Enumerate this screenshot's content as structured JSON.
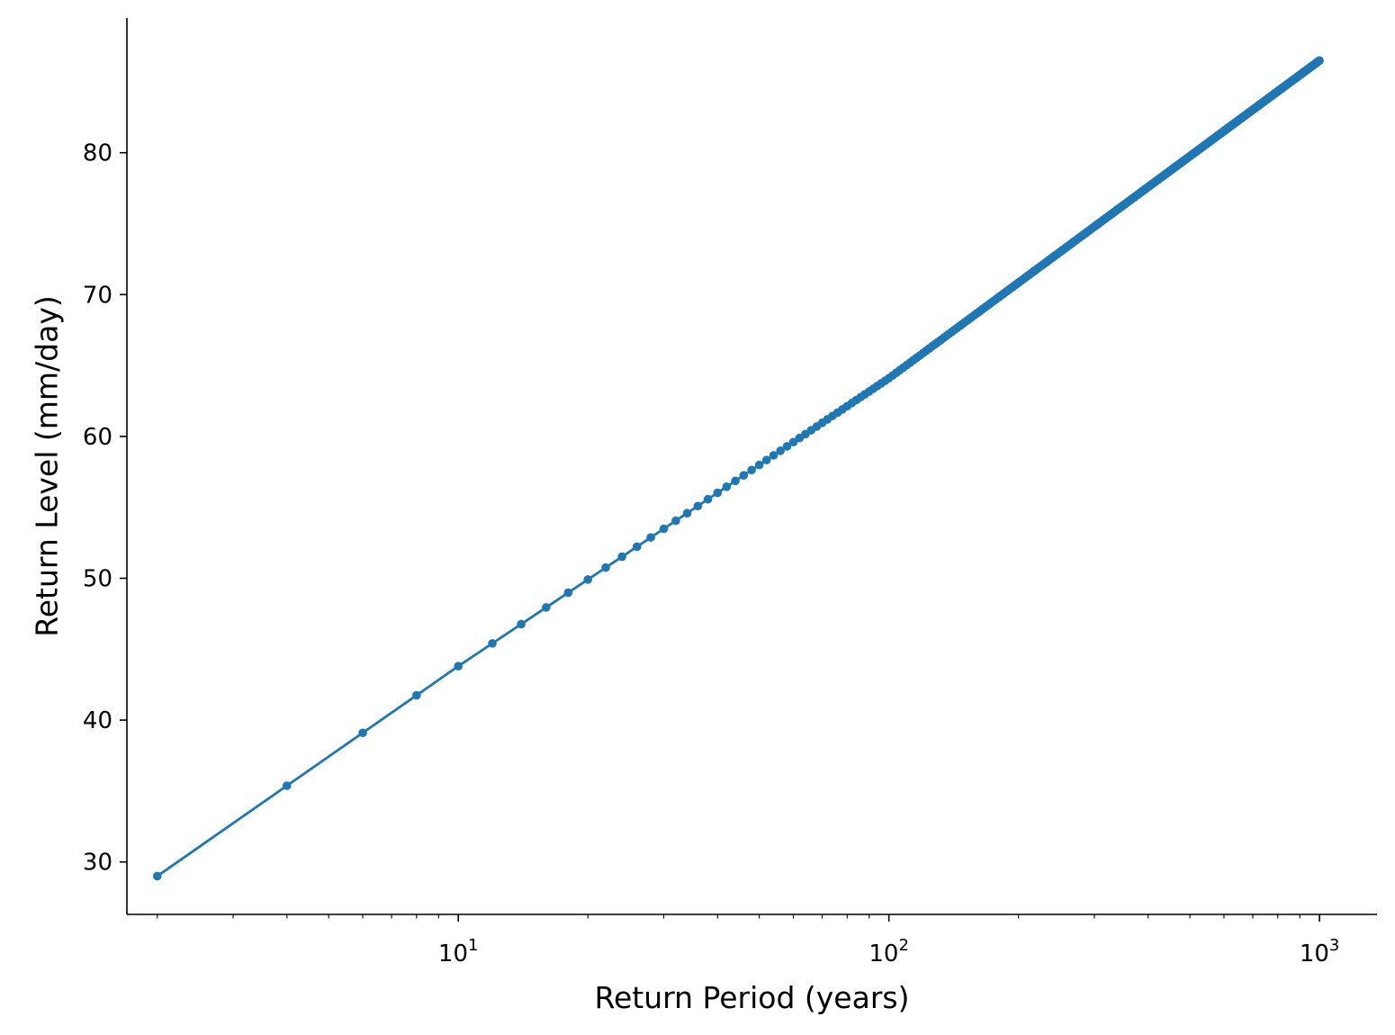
{
  "chart_data": {
    "type": "line",
    "title": "",
    "xlabel": "Return Period (years)",
    "ylabel": "Return Level (mm/day)",
    "xscale": "log",
    "xlim": [
      1.7,
      1360
    ],
    "ylim": [
      26.3,
      89.5
    ],
    "grid": false,
    "legend": "none",
    "x_ticks": [
      {
        "value": 10,
        "base": "10",
        "exp": "1"
      },
      {
        "value": 100,
        "base": "10",
        "exp": "2"
      },
      {
        "value": 1000,
        "base": "10",
        "exp": "3"
      }
    ],
    "y_ticks": [
      30,
      40,
      50,
      60,
      70,
      80
    ],
    "series": [
      {
        "color": "#1f77b4",
        "marker": "circle",
        "x_range": {
          "start": 2,
          "stop": 1000,
          "step": 2
        },
        "fit_anchor_points": {
          "x": [
            2,
            10,
            100,
            1000
          ],
          "y": [
            29.0,
            43.8,
            64.1,
            86.5
          ]
        }
      }
    ]
  }
}
